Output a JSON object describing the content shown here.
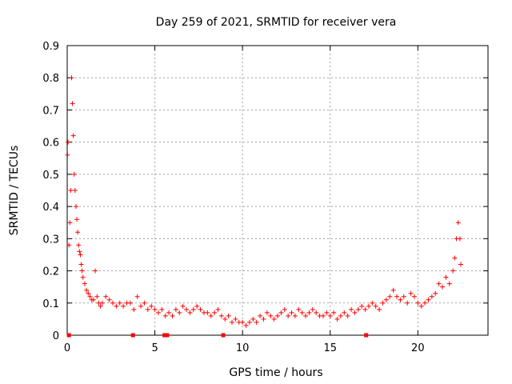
{
  "chart_data": {
    "type": "scatter",
    "title": "Day 259 of 2021, SRMTID for receiver vera",
    "xlabel": "GPS time / hours",
    "ylabel": "SRMTID / TECUs",
    "xlim": [
      0,
      24
    ],
    "ylim": [
      0,
      0.9
    ],
    "xticks": [
      0,
      5,
      10,
      15,
      20
    ],
    "yticks": [
      0,
      0.1,
      0.2,
      0.3,
      0.4,
      0.5,
      0.6,
      0.7,
      0.8,
      0.9
    ],
    "grid": true,
    "marker": "+",
    "color": "#ff0000",
    "series": [
      {
        "name": "SRMTID",
        "x": [
          0.02,
          0.05,
          0.1,
          0.15,
          0.2,
          0.25,
          0.3,
          0.35,
          0.4,
          0.45,
          0.5,
          0.55,
          0.6,
          0.65,
          0.7,
          0.75,
          0.8,
          0.85,
          0.9,
          1.0,
          1.1,
          1.2,
          1.3,
          1.4,
          1.5,
          1.6,
          1.7,
          1.8,
          1.9,
          2.0,
          2.2,
          2.4,
          2.6,
          2.8,
          3.0,
          3.2,
          3.4,
          3.6,
          3.8,
          4.0,
          4.2,
          4.4,
          4.6,
          4.8,
          5.0,
          5.2,
          5.4,
          5.6,
          5.8,
          6.0,
          6.2,
          6.4,
          6.6,
          6.8,
          7.0,
          7.2,
          7.4,
          7.6,
          7.8,
          8.0,
          8.2,
          8.4,
          8.6,
          8.8,
          9.0,
          9.2,
          9.4,
          9.6,
          9.8,
          10.0,
          10.2,
          10.4,
          10.6,
          10.8,
          11.0,
          11.2,
          11.4,
          11.6,
          11.8,
          12.0,
          12.2,
          12.4,
          12.6,
          12.8,
          13.0,
          13.2,
          13.4,
          13.6,
          13.8,
          14.0,
          14.2,
          14.4,
          14.6,
          14.8,
          15.0,
          15.2,
          15.4,
          15.6,
          15.8,
          16.0,
          16.2,
          16.4,
          16.6,
          16.8,
          17.0,
          17.2,
          17.4,
          17.6,
          17.8,
          18.0,
          18.2,
          18.4,
          18.6,
          18.8,
          19.0,
          19.2,
          19.4,
          19.6,
          19.8,
          20.0,
          20.2,
          20.4,
          20.6,
          20.8,
          21.0,
          21.2,
          21.4,
          21.6,
          21.8,
          22.0,
          22.1,
          22.2,
          22.3,
          22.4,
          22.45
        ],
        "y": [
          0.56,
          0.6,
          0.28,
          0.35,
          0.45,
          0.8,
          0.72,
          0.62,
          0.5,
          0.45,
          0.4,
          0.36,
          0.32,
          0.28,
          0.26,
          0.25,
          0.22,
          0.2,
          0.18,
          0.16,
          0.14,
          0.13,
          0.12,
          0.11,
          0.11,
          0.2,
          0.12,
          0.1,
          0.09,
          0.1,
          0.12,
          0.11,
          0.1,
          0.09,
          0.1,
          0.09,
          0.1,
          0.1,
          0.08,
          0.12,
          0.09,
          0.1,
          0.08,
          0.09,
          0.08,
          0.07,
          0.08,
          0.06,
          0.07,
          0.06,
          0.08,
          0.07,
          0.09,
          0.08,
          0.07,
          0.08,
          0.09,
          0.08,
          0.07,
          0.07,
          0.06,
          0.07,
          0.08,
          0.06,
          0.05,
          0.06,
          0.04,
          0.05,
          0.04,
          0.04,
          0.03,
          0.04,
          0.05,
          0.04,
          0.06,
          0.05,
          0.07,
          0.06,
          0.05,
          0.06,
          0.07,
          0.08,
          0.06,
          0.07,
          0.06,
          0.08,
          0.07,
          0.06,
          0.07,
          0.08,
          0.07,
          0.06,
          0.06,
          0.07,
          0.06,
          0.07,
          0.05,
          0.06,
          0.07,
          0.06,
          0.08,
          0.07,
          0.08,
          0.09,
          0.08,
          0.09,
          0.1,
          0.09,
          0.08,
          0.1,
          0.11,
          0.12,
          0.14,
          0.12,
          0.11,
          0.12,
          0.1,
          0.13,
          0.12,
          0.1,
          0.09,
          0.1,
          0.11,
          0.12,
          0.13,
          0.16,
          0.15,
          0.18,
          0.16,
          0.2,
          0.24,
          0.3,
          0.35,
          0.3,
          0.22
        ]
      }
    ],
    "axis_markers_x": [
      0.1,
      3.75,
      5.55,
      5.7,
      8.9,
      17.05
    ]
  }
}
